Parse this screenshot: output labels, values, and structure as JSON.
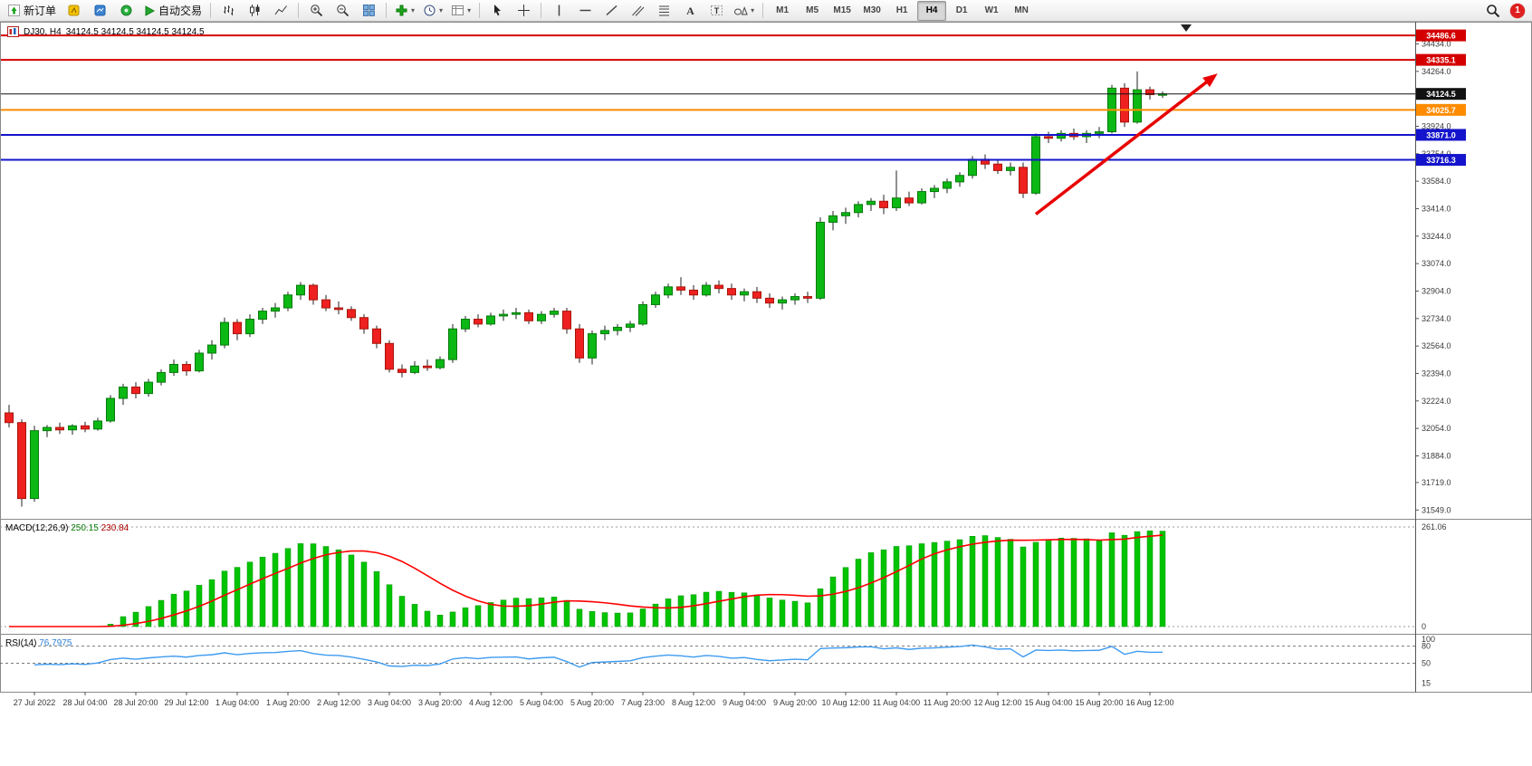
{
  "toolbar": {
    "new_order_label": "新订单",
    "autotrading_label": "自动交易",
    "timeframes": [
      "M1",
      "M5",
      "M15",
      "M30",
      "H1",
      "H4",
      "D1",
      "W1",
      "MN"
    ],
    "active_timeframe": "H4",
    "notification_count": "1"
  },
  "chart": {
    "symbol_title": "DJ30, H4",
    "ohlc_text": "34124.5 34124.5 34124.5 34124.5"
  },
  "chart_data": {
    "type": "candlestick",
    "symbol": "DJ30",
    "timeframe": "H4",
    "price_axis": {
      "min": 31500,
      "max": 34560,
      "tick_labels": [
        "34434.0",
        "34264.0",
        "33924.0",
        "33754.0",
        "33584.0",
        "33414.0",
        "33244.0",
        "33074.0",
        "32904.0",
        "32734.0",
        "32564.0",
        "32394.0",
        "32224.0",
        "32054.0",
        "31884.0",
        "31719.0",
        "31549.0"
      ]
    },
    "x_labels": [
      "27 Jul 2022",
      "28 Jul 04:00",
      "28 Jul 20:00",
      "29 Jul 12:00",
      "1 Aug 04:00",
      "1 Aug 20:00",
      "2 Aug 12:00",
      "3 Aug 04:00",
      "3 Aug 20:00",
      "4 Aug 12:00",
      "5 Aug 04:00",
      "5 Aug 20:00",
      "7 Aug 23:00",
      "8 Aug 12:00",
      "9 Aug 04:00",
      "9 Aug 20:00",
      "10 Aug 12:00",
      "11 Aug 04:00",
      "11 Aug 20:00",
      "12 Aug 12:00",
      "15 Aug 04:00",
      "15 Aug 20:00",
      "16 Aug 12:00"
    ],
    "label_start_index": 2,
    "label_step": 4,
    "candles": [
      [
        32150,
        32200,
        32060,
        32090
      ],
      [
        32090,
        32110,
        31570,
        31620
      ],
      [
        31620,
        32070,
        31600,
        32040
      ],
      [
        32040,
        32075,
        32000,
        32060
      ],
      [
        32060,
        32090,
        32020,
        32045
      ],
      [
        32045,
        32080,
        32015,
        32070
      ],
      [
        32070,
        32095,
        32030,
        32050
      ],
      [
        32050,
        32120,
        32040,
        32100
      ],
      [
        32100,
        32260,
        32090,
        32240
      ],
      [
        32240,
        32330,
        32200,
        32310
      ],
      [
        32310,
        32340,
        32240,
        32270
      ],
      [
        32270,
        32360,
        32250,
        32340
      ],
      [
        32340,
        32420,
        32320,
        32400
      ],
      [
        32400,
        32480,
        32380,
        32450
      ],
      [
        32450,
        32470,
        32380,
        32410
      ],
      [
        32410,
        32540,
        32400,
        32520
      ],
      [
        32520,
        32600,
        32480,
        32570
      ],
      [
        32570,
        32740,
        32550,
        32710
      ],
      [
        32710,
        32730,
        32600,
        32640
      ],
      [
        32640,
        32760,
        32620,
        32730
      ],
      [
        32730,
        32800,
        32700,
        32780
      ],
      [
        32780,
        32830,
        32740,
        32800
      ],
      [
        32800,
        32900,
        32780,
        32880
      ],
      [
        32880,
        32960,
        32850,
        32940
      ],
      [
        32940,
        32950,
        32820,
        32850
      ],
      [
        32850,
        32880,
        32780,
        32800
      ],
      [
        32800,
        32840,
        32760,
        32790
      ],
      [
        32790,
        32810,
        32720,
        32740
      ],
      [
        32740,
        32760,
        32640,
        32670
      ],
      [
        32670,
        32690,
        32550,
        32580
      ],
      [
        32580,
        32600,
        32400,
        32420
      ],
      [
        32420,
        32450,
        32370,
        32400
      ],
      [
        32400,
        32470,
        32390,
        32440
      ],
      [
        32440,
        32480,
        32410,
        32430
      ],
      [
        32430,
        32500,
        32420,
        32480
      ],
      [
        32480,
        32700,
        32460,
        32670
      ],
      [
        32670,
        32750,
        32650,
        32730
      ],
      [
        32730,
        32760,
        32680,
        32700
      ],
      [
        32700,
        32770,
        32690,
        32750
      ],
      [
        32750,
        32790,
        32720,
        32760
      ],
      [
        32760,
        32800,
        32730,
        32770
      ],
      [
        32770,
        32790,
        32700,
        32720
      ],
      [
        32720,
        32780,
        32700,
        32760
      ],
      [
        32760,
        32800,
        32740,
        32780
      ],
      [
        32780,
        32800,
        32640,
        32670
      ],
      [
        32670,
        32700,
        32460,
        32490
      ],
      [
        32490,
        32660,
        32450,
        32640
      ],
      [
        32640,
        32690,
        32600,
        32660
      ],
      [
        32660,
        32700,
        32630,
        32680
      ],
      [
        32680,
        32720,
        32650,
        32700
      ],
      [
        32700,
        32840,
        32690,
        32820
      ],
      [
        32820,
        32900,
        32800,
        32880
      ],
      [
        32880,
        32950,
        32860,
        32930
      ],
      [
        32930,
        32990,
        32880,
        32910
      ],
      [
        32910,
        32940,
        32850,
        32880
      ],
      [
        32880,
        32960,
        32870,
        32940
      ],
      [
        32940,
        32970,
        32890,
        32920
      ],
      [
        32920,
        32950,
        32850,
        32880
      ],
      [
        32880,
        32920,
        32840,
        32900
      ],
      [
        32900,
        32930,
        32830,
        32860
      ],
      [
        32860,
        32890,
        32800,
        32830
      ],
      [
        32830,
        32870,
        32790,
        32850
      ],
      [
        32850,
        32890,
        32820,
        32870
      ],
      [
        32870,
        32900,
        32830,
        32860
      ],
      [
        32860,
        33360,
        32850,
        33330
      ],
      [
        33330,
        33400,
        33280,
        33370
      ],
      [
        33370,
        33420,
        33320,
        33390
      ],
      [
        33390,
        33460,
        33360,
        33440
      ],
      [
        33440,
        33480,
        33400,
        33460
      ],
      [
        33460,
        33500,
        33380,
        33420
      ],
      [
        33420,
        33650,
        33400,
        33480
      ],
      [
        33480,
        33520,
        33430,
        33450
      ],
      [
        33450,
        33540,
        33440,
        33520
      ],
      [
        33520,
        33560,
        33480,
        33540
      ],
      [
        33540,
        33600,
        33510,
        33580
      ],
      [
        33580,
        33640,
        33550,
        33620
      ],
      [
        33620,
        33740,
        33600,
        33720
      ],
      [
        33720,
        33750,
        33660,
        33690
      ],
      [
        33690,
        33720,
        33630,
        33650
      ],
      [
        33650,
        33700,
        33620,
        33670
      ],
      [
        33670,
        33700,
        33480,
        33510
      ],
      [
        33510,
        33880,
        33500,
        33860
      ],
      [
        33860,
        33890,
        33820,
        33850
      ],
      [
        33850,
        33900,
        33830,
        33880
      ],
      [
        33880,
        33910,
        33840,
        33860
      ],
      [
        33860,
        33900,
        33820,
        33880
      ],
      [
        33880,
        33920,
        33850,
        33890
      ],
      [
        33890,
        34180,
        33880,
        34160
      ],
      [
        34160,
        34190,
        33920,
        33950
      ],
      [
        33950,
        34264,
        33940,
        34150
      ],
      [
        34150,
        34170,
        34090,
        34120
      ],
      [
        34120,
        34140,
        34100,
        34124.5
      ]
    ],
    "hlines": [
      {
        "price": 34486.6,
        "label": "34486.6",
        "color": "#d40000",
        "width": 2
      },
      {
        "price": 34335.1,
        "label": "34335.1",
        "color": "#d40000",
        "width": 2
      },
      {
        "price": 34124.5,
        "label": "34124.5",
        "color": "#111111",
        "width": 1,
        "current": true
      },
      {
        "price": 34025.7,
        "label": "34025.7",
        "color": "#ff8c00",
        "width": 2
      },
      {
        "price": 33871.0,
        "label": "33871.0",
        "color": "#1414cc",
        "width": 2
      },
      {
        "price": 33716.3,
        "label": "33716.3",
        "color": "#1414cc",
        "width": 2
      }
    ],
    "current_price": 34124.5,
    "trend_arrow": {
      "from_index": 81,
      "from_price": 33380,
      "to_index": 95,
      "to_price": 34230,
      "color": "#e80000"
    },
    "colors": {
      "up": "#0cb814",
      "up_border": "#067a0c",
      "down": "#ee2020",
      "down_border": "#a8150a",
      "wick": "#222222"
    },
    "macd": {
      "label": "MACD(12,26,9)",
      "value_main": "250.15",
      "value_signal": "230.84",
      "axis_max": "261.06",
      "axis_min": "0",
      "bar_color": "#00c400",
      "signal_color": "#ff0000"
    },
    "rsi": {
      "label": "RSI(14)",
      "value": "76.7975",
      "levels": [
        80,
        50
      ],
      "axis_labels": [
        "100",
        "80",
        "50",
        "15"
      ],
      "line_color": "#3e9bf0"
    }
  }
}
